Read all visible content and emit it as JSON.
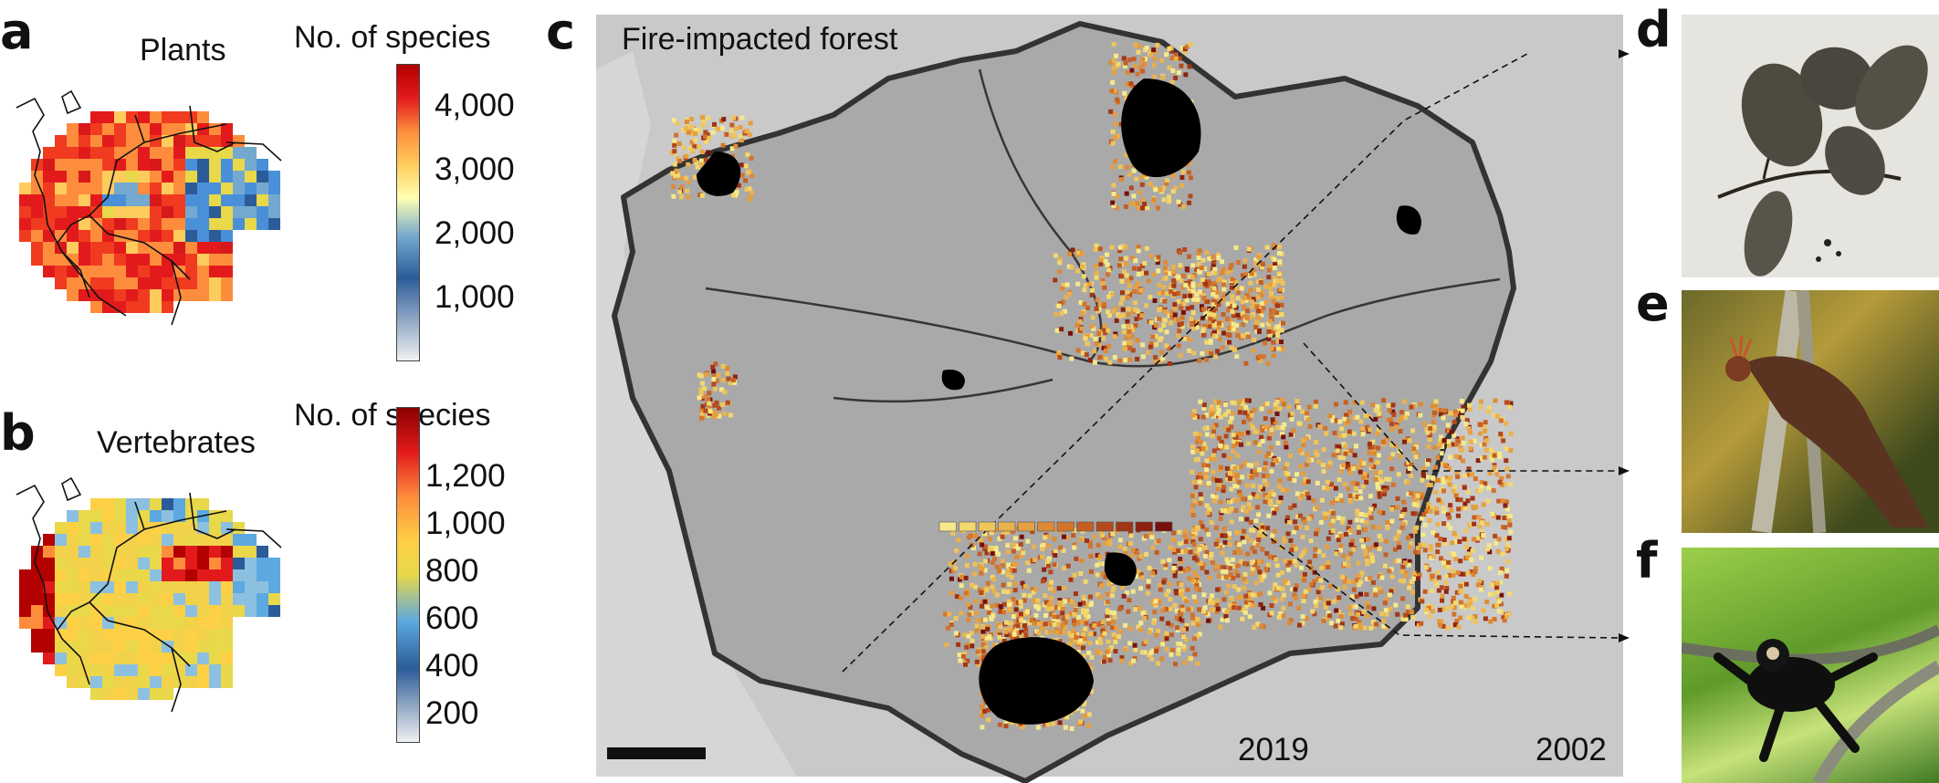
{
  "panels": {
    "a": {
      "letter": "a",
      "title": "Plants",
      "colorbar_title": "No. of species",
      "colorbar_ticks": [
        "4,000",
        "3,000",
        "2,000",
        "1,000"
      ]
    },
    "b": {
      "letter": "b",
      "title": "Vertebrates",
      "colorbar_title": "No. of species",
      "colorbar_ticks": [
        "1,200",
        "1,000",
        "800",
        "600",
        "400",
        "200"
      ]
    },
    "c": {
      "letter": "c",
      "title": "Fire-impacted forest",
      "legend_start": "2019",
      "legend_end": "2002"
    },
    "d": {
      "letter": "d"
    },
    "e": {
      "letter": "e"
    },
    "f": {
      "letter": "f"
    }
  },
  "colors": {
    "map_background": "#c8c8c8",
    "amazon_region": "#a9a9a9",
    "boundary": "#3a3a3a",
    "fire_recent": "#f4e27a",
    "fire_old": "#7a0c0c",
    "richness_high": "#d7191c",
    "richness_low": "#f7f7f7"
  },
  "legend_swatches": [
    "#f6e98a",
    "#f3d86e",
    "#efc55a",
    "#eab24c",
    "#e69f40",
    "#de8a35",
    "#d3742b",
    "#c55e23",
    "#b5491b",
    "#a23514",
    "#8c210f",
    "#76100c"
  ],
  "icons": [
    "herbarium-specimen-photo",
    "hoatzin-bird-photo",
    "spider-monkey-photo"
  ]
}
